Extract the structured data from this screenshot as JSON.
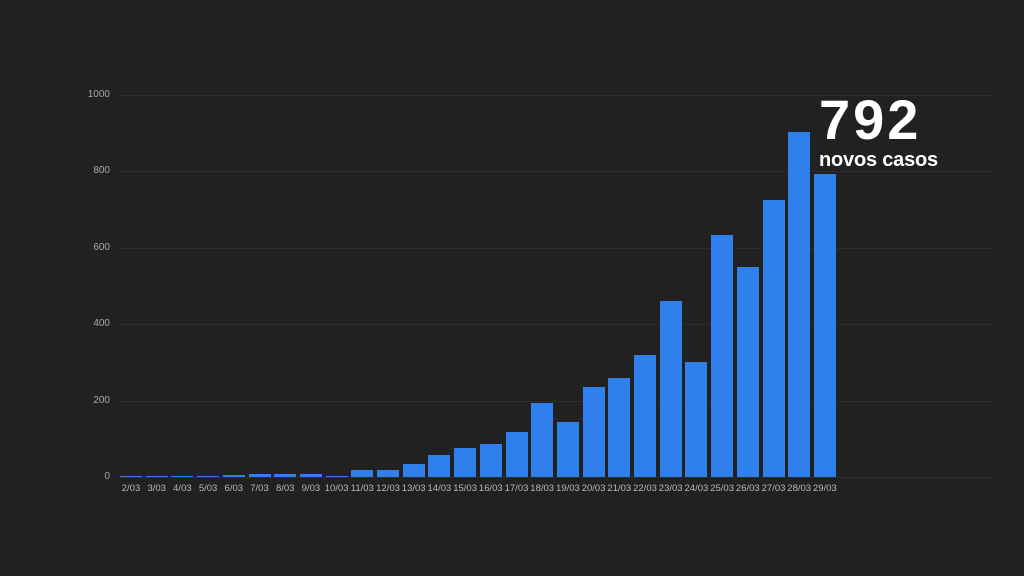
{
  "background_color": "#212121",
  "highlight": {
    "value": "792",
    "label": "novos casos"
  },
  "chart_data": {
    "type": "bar",
    "title": "",
    "xlabel": "",
    "ylabel": "",
    "categories": [
      "2/03",
      "3/03",
      "4/03",
      "5/03",
      "6/03",
      "7/03",
      "8/03",
      "9/03",
      "10/03",
      "11/03",
      "12/03",
      "13/03",
      "14/03",
      "15/03",
      "16/03",
      "17/03",
      "18/03",
      "19/03",
      "20/03",
      "21/03",
      "22/03",
      "23/03",
      "24/03",
      "25/03",
      "26/03",
      "27/03",
      "28/03",
      "29/03"
    ],
    "values": [
      2,
      2,
      2,
      3,
      4,
      8,
      9,
      9,
      2,
      18,
      19,
      34,
      57,
      76,
      86,
      117,
      194,
      143,
      235,
      260,
      320,
      460,
      302,
      633,
      549,
      724,
      902,
      792
    ],
    "ylim": [
      0,
      1000
    ],
    "yticks": [
      0,
      200,
      400,
      600,
      800,
      1000
    ],
    "grid": true,
    "legend": "none",
    "bar_color": "#2f80ed",
    "gridline_color": "#2d2d2d",
    "axis_tick_color": "#b0b0b0"
  }
}
